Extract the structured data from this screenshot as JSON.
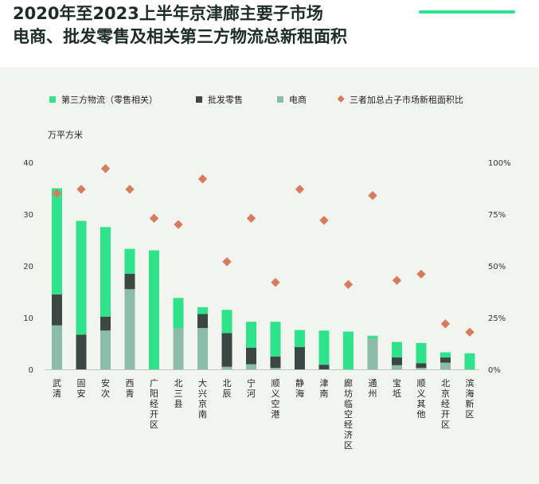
{
  "header": {
    "title_line1": "2020年至2023上半年京津廊主要子市场",
    "title_line2": "电商、批发零售及相关第三方物流总新租面积"
  },
  "colors": {
    "accent": "#2ee38a",
    "third_party": "#2ee38a",
    "wholesale": "#3c4744",
    "ecommerce": "#8bbcaa",
    "ratio_marker": "#d97a5c",
    "panel_bg": "#f2f4f0"
  },
  "chart_data": {
    "type": "bar",
    "stacked": true,
    "unit_label": "万平方米",
    "legend": [
      "第三方物流（零售相关）",
      "批发零售",
      "电商",
      "三者加总占子市场新租面积比"
    ],
    "categories": [
      "武清",
      "固安",
      "安次",
      "西青",
      "广阳经开区",
      "北三县",
      "大兴京南",
      "北辰",
      "宁河",
      "顺义空港",
      "静海",
      "津南",
      "廊坊临空经济区",
      "通州",
      "宝坻",
      "顺义其他",
      "北京经开区",
      "滨海新区"
    ],
    "series": [
      {
        "name": "电商",
        "values": [
          8.5,
          0,
          7.5,
          15.5,
          0,
          8.0,
          8.0,
          0.5,
          1.0,
          0.3,
          0,
          0,
          0,
          6.0,
          0.8,
          0.3,
          1.3,
          0
        ]
      },
      {
        "name": "批发零售",
        "values": [
          6.0,
          6.7,
          2.7,
          3.0,
          0,
          0,
          2.7,
          6.5,
          3.2,
          2.2,
          4.3,
          0.9,
          0,
          0,
          1.5,
          0.9,
          1.0,
          0
        ]
      },
      {
        "name": "第三方物流（零售相关）",
        "values": [
          20.5,
          22.0,
          17.3,
          4.8,
          23.0,
          5.8,
          1.3,
          4.5,
          5.0,
          6.7,
          3.3,
          6.6,
          7.3,
          0.5,
          3.0,
          3.9,
          1.0,
          3.1
        ]
      }
    ],
    "ratio_series": {
      "name": "三者加总占子市场新租面积比",
      "values": [
        85,
        87,
        97,
        87,
        73,
        70,
        92,
        52,
        73,
        42,
        87,
        72,
        41,
        84,
        43,
        46,
        22,
        18
      ]
    },
    "y_left": {
      "min": 0,
      "max": 40,
      "ticks": [
        "0",
        "10",
        "20",
        "30",
        "40"
      ]
    },
    "y_right": {
      "min": 0,
      "max": 100,
      "ticks": [
        "0%",
        "25%",
        "50%",
        "75%",
        "100%"
      ]
    }
  }
}
